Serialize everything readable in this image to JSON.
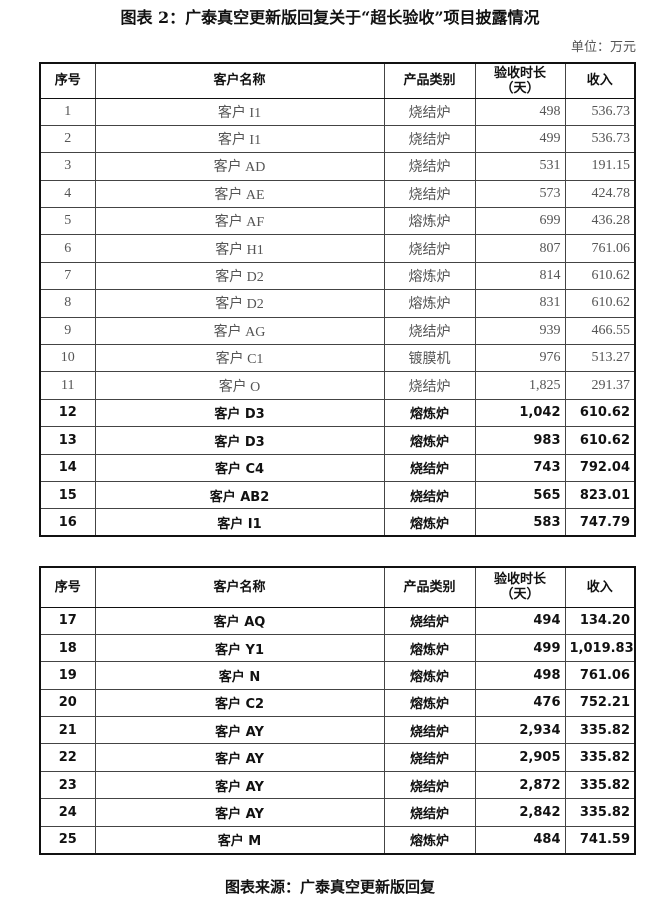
{
  "title": "图表 2：广泰真空更新版回复关于“超长验收”项目披露情况",
  "unit": "单位：万元",
  "headers": {
    "no": "序号",
    "customer": "客户名称",
    "product": "产品类别",
    "days_line1": "验收时长",
    "days_line2": "（天）",
    "revenue": "收入"
  },
  "table1": [
    {
      "no": "1",
      "customer": "客户 I1",
      "product": "烧结炉",
      "days": "498",
      "revenue": "536.73",
      "bold": false
    },
    {
      "no": "2",
      "customer": "客户 I1",
      "product": "烧结炉",
      "days": "499",
      "revenue": "536.73",
      "bold": false
    },
    {
      "no": "3",
      "customer": "客户 AD",
      "product": "烧结炉",
      "days": "531",
      "revenue": "191.15",
      "bold": false
    },
    {
      "no": "4",
      "customer": "客户 AE",
      "product": "烧结炉",
      "days": "573",
      "revenue": "424.78",
      "bold": false
    },
    {
      "no": "5",
      "customer": "客户 AF",
      "product": "熔炼炉",
      "days": "699",
      "revenue": "436.28",
      "bold": false
    },
    {
      "no": "6",
      "customer": "客户 H1",
      "product": "烧结炉",
      "days": "807",
      "revenue": "761.06",
      "bold": false
    },
    {
      "no": "7",
      "customer": "客户 D2",
      "product": "熔炼炉",
      "days": "814",
      "revenue": "610.62",
      "bold": false
    },
    {
      "no": "8",
      "customer": "客户 D2",
      "product": "熔炼炉",
      "days": "831",
      "revenue": "610.62",
      "bold": false
    },
    {
      "no": "9",
      "customer": "客户 AG",
      "product": "烧结炉",
      "days": "939",
      "revenue": "466.55",
      "bold": false
    },
    {
      "no": "10",
      "customer": "客户 C1",
      "product": "镀膜机",
      "days": "976",
      "revenue": "513.27",
      "bold": false
    },
    {
      "no": "11",
      "customer": "客户 O",
      "product": "烧结炉",
      "days": "1,825",
      "revenue": "291.37",
      "bold": false
    },
    {
      "no": "12",
      "customer": "客户 D3",
      "product": "熔炼炉",
      "days": "1,042",
      "revenue": "610.62",
      "bold": true
    },
    {
      "no": "13",
      "customer": "客户 D3",
      "product": "熔炼炉",
      "days": "983",
      "revenue": "610.62",
      "bold": true
    },
    {
      "no": "14",
      "customer": "客户 C4",
      "product": "烧结炉",
      "days": "743",
      "revenue": "792.04",
      "bold": true
    },
    {
      "no": "15",
      "customer": "客户 AB2",
      "product": "烧结炉",
      "days": "565",
      "revenue": "823.01",
      "bold": true
    },
    {
      "no": "16",
      "customer": "客户 I1",
      "product": "熔炼炉",
      "days": "583",
      "revenue": "747.79",
      "bold": true
    }
  ],
  "table2": [
    {
      "no": "17",
      "customer": "客户 AQ",
      "product": "烧结炉",
      "days": "494",
      "revenue": "134.20",
      "bold": true
    },
    {
      "no": "18",
      "customer": "客户 Y1",
      "product": "熔炼炉",
      "days": "499",
      "revenue": "1,019.83",
      "bold": true
    },
    {
      "no": "19",
      "customer": "客户 N",
      "product": "熔炼炉",
      "days": "498",
      "revenue": "761.06",
      "bold": true
    },
    {
      "no": "20",
      "customer": "客户 C2",
      "product": "熔炼炉",
      "days": "476",
      "revenue": "752.21",
      "bold": true
    },
    {
      "no": "21",
      "customer": "客户 AY",
      "product": "烧结炉",
      "days": "2,934",
      "revenue": "335.82",
      "bold": true
    },
    {
      "no": "22",
      "customer": "客户 AY",
      "product": "烧结炉",
      "days": "2,905",
      "revenue": "335.82",
      "bold": true
    },
    {
      "no": "23",
      "customer": "客户 AY",
      "product": "烧结炉",
      "days": "2,872",
      "revenue": "335.82",
      "bold": true
    },
    {
      "no": "24",
      "customer": "客户 AY",
      "product": "烧结炉",
      "days": "2,842",
      "revenue": "335.82",
      "bold": true
    },
    {
      "no": "25",
      "customer": "客户 M",
      "product": "熔炼炉",
      "days": "484",
      "revenue": "741.59",
      "bold": true
    }
  ],
  "source": "图表来源：广泰真空更新版回复"
}
